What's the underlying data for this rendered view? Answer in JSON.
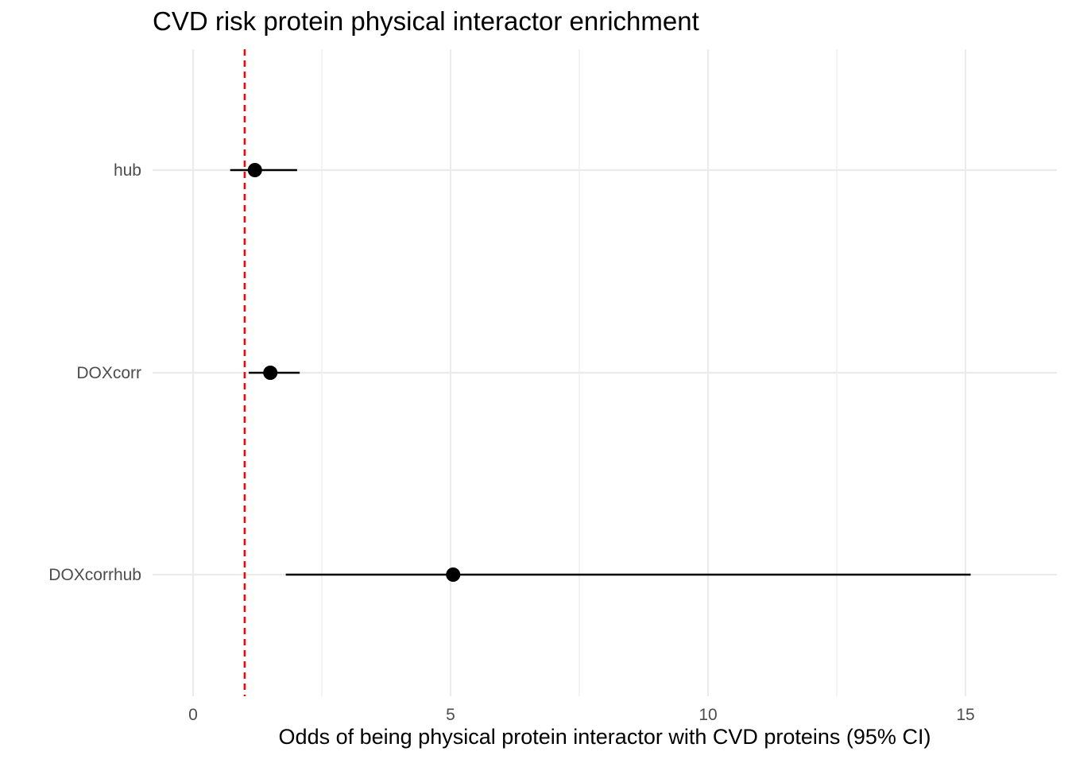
{
  "chart_data": {
    "type": "scatter",
    "subtype": "forest-plot",
    "title": "CVD risk protein physical interactor enrichment",
    "xlabel": "Odds of being physical protein interactor with CVD proteins (95% CI)",
    "ylabel": "",
    "xlim": [
      -0.6,
      16.9
    ],
    "xticks": [
      0,
      5,
      10,
      15
    ],
    "x_minor_ticks": [
      2.5,
      7.5,
      12.5
    ],
    "categories": [
      "hub",
      "DOXcorr",
      "DOXcorrhub"
    ],
    "series": [
      {
        "estimate": [
          1.2,
          1.5,
          5.05
        ],
        "ci_low": [
          0.72,
          1.08,
          1.8
        ],
        "ci_high": [
          2.02,
          2.07,
          15.1
        ]
      }
    ],
    "reference_line": {
      "x": 1,
      "style": "dashed",
      "color": "#ff0000"
    },
    "grid": true,
    "legend": "none",
    "colors": {
      "point": "#000000",
      "grid": "#ebebeb",
      "tick_text": "#4d4d4d"
    }
  }
}
